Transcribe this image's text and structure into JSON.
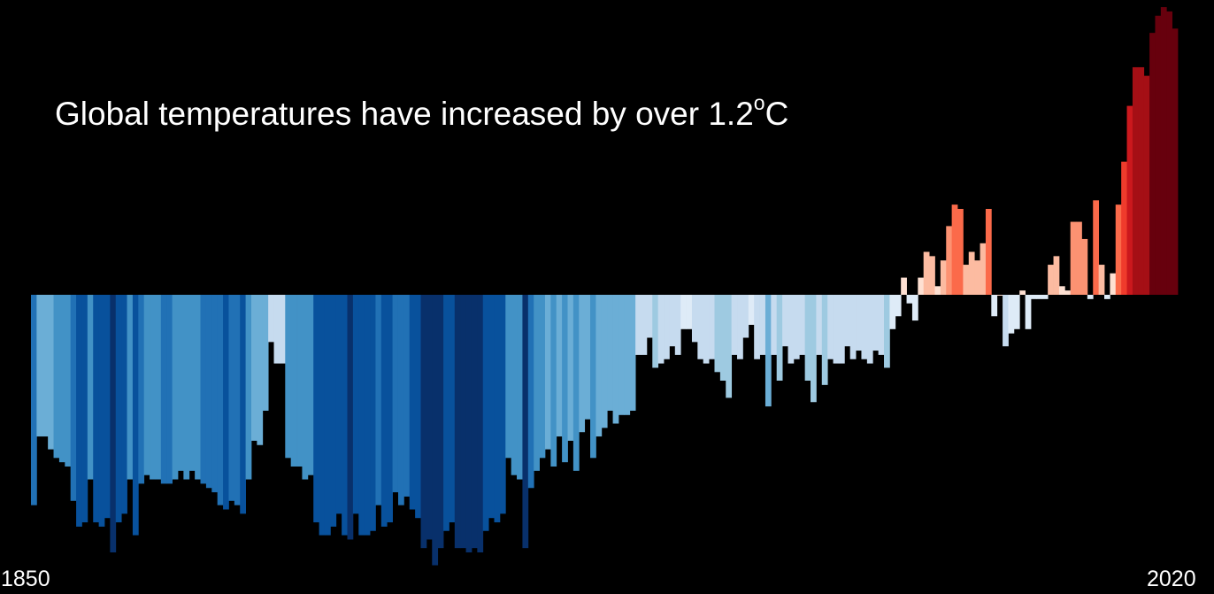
{
  "title": {
    "prefix": "Global temperatures have increased by over 1.2",
    "superscript": "o",
    "suffix": "C"
  },
  "labels": {
    "start_year": "1850",
    "end_year": "2020"
  },
  "chart_data": {
    "type": "bar",
    "title": "Global temperatures have increased by over 1.2°C",
    "xlabel": "",
    "ylabel": "",
    "x_start": 1850,
    "x_end": 2020,
    "ylim": [
      -0.65,
      0.68
    ],
    "grid": false,
    "legend": "none",
    "colors": {
      "deep_blue": "#08306b",
      "dark_blue": "#08519c",
      "blue": "#2171b5",
      "mid_blue": "#4292c6",
      "light_blue": "#6baed6",
      "pale_blue": "#9ecae1",
      "lightest_blue": "#c6dbef",
      "near_white_blue": "#deebf7",
      "near_white_red": "#fee0d2",
      "pale_red": "#fcbba1",
      "light_red": "#fc9272",
      "red": "#fb6a4a",
      "strong_red": "#ef3b2c",
      "dark_red": "#cb181d",
      "deeper_red": "#a50f15",
      "darkest_red": "#67000d"
    },
    "values": [
      -0.49,
      -0.33,
      -0.33,
      -0.36,
      -0.38,
      -0.39,
      -0.4,
      -0.48,
      -0.54,
      -0.53,
      -0.43,
      -0.53,
      -0.54,
      -0.52,
      -0.6,
      -0.53,
      -0.51,
      -0.43,
      -0.56,
      -0.44,
      -0.42,
      -0.43,
      -0.43,
      -0.44,
      -0.44,
      -0.43,
      -0.41,
      -0.43,
      -0.41,
      -0.43,
      -0.44,
      -0.45,
      -0.46,
      -0.49,
      -0.5,
      -0.48,
      -0.49,
      -0.51,
      -0.43,
      -0.34,
      -0.35,
      -0.27,
      -0.11,
      -0.16,
      -0.16,
      -0.38,
      -0.4,
      -0.4,
      -0.43,
      -0.42,
      -0.53,
      -0.56,
      -0.56,
      -0.54,
      -0.51,
      -0.56,
      -0.57,
      -0.51,
      -0.56,
      -0.56,
      -0.55,
      -0.49,
      -0.54,
      -0.53,
      -0.46,
      -0.49,
      -0.47,
      -0.5,
      -0.52,
      -0.59,
      -0.57,
      -0.63,
      -0.59,
      -0.55,
      -0.53,
      -0.59,
      -0.59,
      -0.6,
      -0.59,
      -0.6,
      -0.55,
      -0.52,
      -0.53,
      -0.51,
      -0.38,
      -0.42,
      -0.43,
      -0.59,
      -0.45,
      -0.41,
      -0.38,
      -0.36,
      -0.4,
      -0.33,
      -0.39,
      -0.34,
      -0.41,
      -0.32,
      -0.29,
      -0.38,
      -0.33,
      -0.31,
      -0.27,
      -0.3,
      -0.28,
      -0.28,
      -0.27,
      -0.14,
      -0.14,
      -0.1,
      -0.17,
      -0.16,
      -0.15,
      -0.12,
      -0.14,
      -0.08,
      -0.08,
      -0.11,
      -0.15,
      -0.16,
      -0.15,
      -0.18,
      -0.2,
      -0.24,
      -0.14,
      -0.15,
      -0.1,
      -0.07,
      -0.15,
      -0.14,
      -0.26,
      -0.14,
      -0.2,
      -0.12,
      -0.16,
      -0.15,
      -0.14,
      -0.2,
      -0.25,
      -0.14,
      -0.21,
      -0.15,
      -0.16,
      -0.16,
      -0.12,
      -0.15,
      -0.13,
      -0.15,
      -0.16,
      -0.13,
      -0.14,
      -0.17,
      -0.08,
      -0.05,
      0.04,
      -0.02,
      -0.06,
      0.04,
      0.1,
      0.09,
      0.02,
      0.08,
      0.16,
      0.21,
      0.2,
      0.07,
      0.1,
      0.08,
      0.12,
      0.2
    ],
    "end_values": [
      -0.05,
      0.0,
      -0.12,
      -0.09,
      -0.08,
      0.01,
      -0.08,
      -0.01,
      -0.01,
      -0.01,
      0.07,
      0.09,
      0.02,
      0.01,
      0.17,
      0.17,
      0.13,
      -0.01,
      0.22,
      0.07,
      -0.01,
      0.05,
      0.21,
      0.31,
      0.44,
      0.53,
      0.53,
      0.51,
      0.61,
      0.65,
      0.67,
      0.66,
      0.62
    ]
  }
}
